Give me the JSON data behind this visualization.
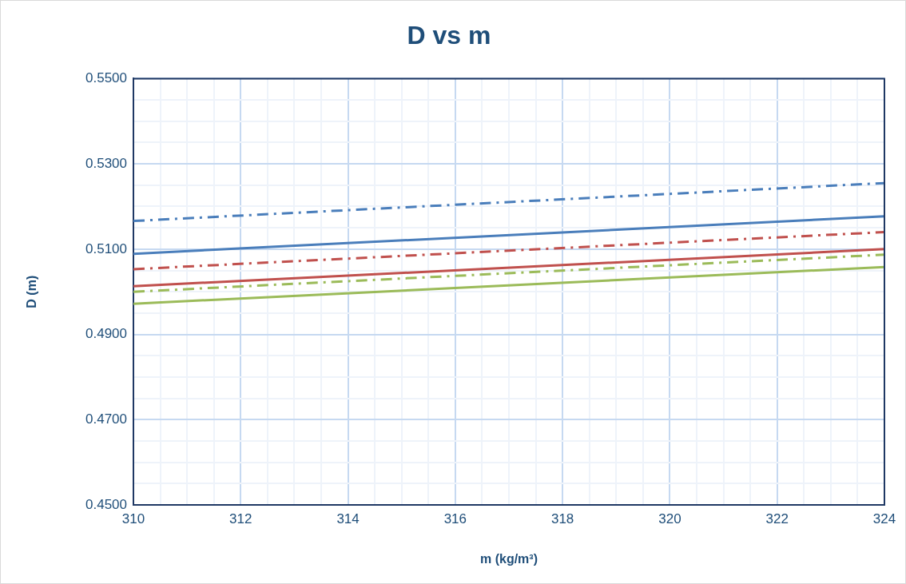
{
  "chart_data": {
    "type": "line",
    "title": "D vs m",
    "xlabel": "m (kg/m³)",
    "ylabel": "D (m)",
    "xlim": [
      310,
      324
    ],
    "xticks": [
      310,
      {
        "value": 310.5,
        "label": null
      },
      {
        "value": 311,
        "label": null
      },
      {
        "value": 311.5,
        "label": null
      },
      312,
      {
        "value": 312.5,
        "label": null
      },
      {
        "value": 313,
        "label": null
      },
      {
        "value": 313.5,
        "label": null
      },
      314,
      {
        "value": 314.5,
        "label": null
      },
      {
        "value": 315,
        "label": null
      },
      {
        "value": 315.5,
        "label": null
      },
      316,
      {
        "value": 316.5,
        "label": null
      },
      {
        "value": 317,
        "label": null
      },
      {
        "value": 317.5,
        "label": null
      },
      318,
      {
        "value": 318.5,
        "label": null
      },
      {
        "value": 319,
        "label": null
      },
      {
        "value": 319.5,
        "label": null
      },
      320,
      {
        "value": 320.5,
        "label": null
      },
      {
        "value": 321,
        "label": null
      },
      {
        "value": 321.5,
        "label": null
      },
      322,
      {
        "value": 322.5,
        "label": null
      },
      {
        "value": 323,
        "label": null
      },
      {
        "value": 323.5,
        "label": null
      },
      324
    ],
    "ylim": [
      0.45,
      0.55
    ],
    "yticks": [
      {
        "value": 0.45,
        "label": "0.4500"
      },
      {
        "value": 0.455,
        "label": null
      },
      {
        "value": 0.46,
        "label": null
      },
      {
        "value": 0.465,
        "label": null
      },
      {
        "value": 0.47,
        "label": "0.4700"
      },
      {
        "value": 0.475,
        "label": null
      },
      {
        "value": 0.48,
        "label": null
      },
      {
        "value": 0.485,
        "label": null
      },
      {
        "value": 0.49,
        "label": "0.4900"
      },
      {
        "value": 0.495,
        "label": null
      },
      {
        "value": 0.5,
        "label": null
      },
      {
        "value": 0.505,
        "label": null
      },
      {
        "value": 0.51,
        "label": "0.5100"
      },
      {
        "value": 0.515,
        "label": null
      },
      {
        "value": 0.52,
        "label": null
      },
      {
        "value": 0.525,
        "label": null
      },
      {
        "value": 0.53,
        "label": "0.5300"
      },
      {
        "value": 0.535,
        "label": null
      },
      {
        "value": 0.54,
        "label": null
      },
      {
        "value": 0.545,
        "label": null
      },
      {
        "value": 0.55,
        "label": "0.5500"
      }
    ],
    "grid": true,
    "legend": false,
    "marker": "none",
    "x": [
      310,
      324
    ],
    "series": [
      {
        "color": "#4a7ebb",
        "line_style": "dashed",
        "values": [
          0.5166,
          0.5255
        ]
      },
      {
        "color": "#4a7ebb",
        "line_style": "solid",
        "values": [
          0.5089,
          0.5177
        ]
      },
      {
        "color": "#c0504d",
        "line_style": "dashed",
        "values": [
          0.5053,
          0.514
        ]
      },
      {
        "color": "#c0504d",
        "line_style": "solid",
        "values": [
          0.5013,
          0.51
        ]
      },
      {
        "color": "#9bbb59",
        "line_style": "dashed",
        "values": [
          0.5,
          0.5087
        ]
      },
      {
        "color": "#9bbb59",
        "line_style": "solid",
        "values": [
          0.4972,
          0.5058
        ]
      }
    ]
  }
}
